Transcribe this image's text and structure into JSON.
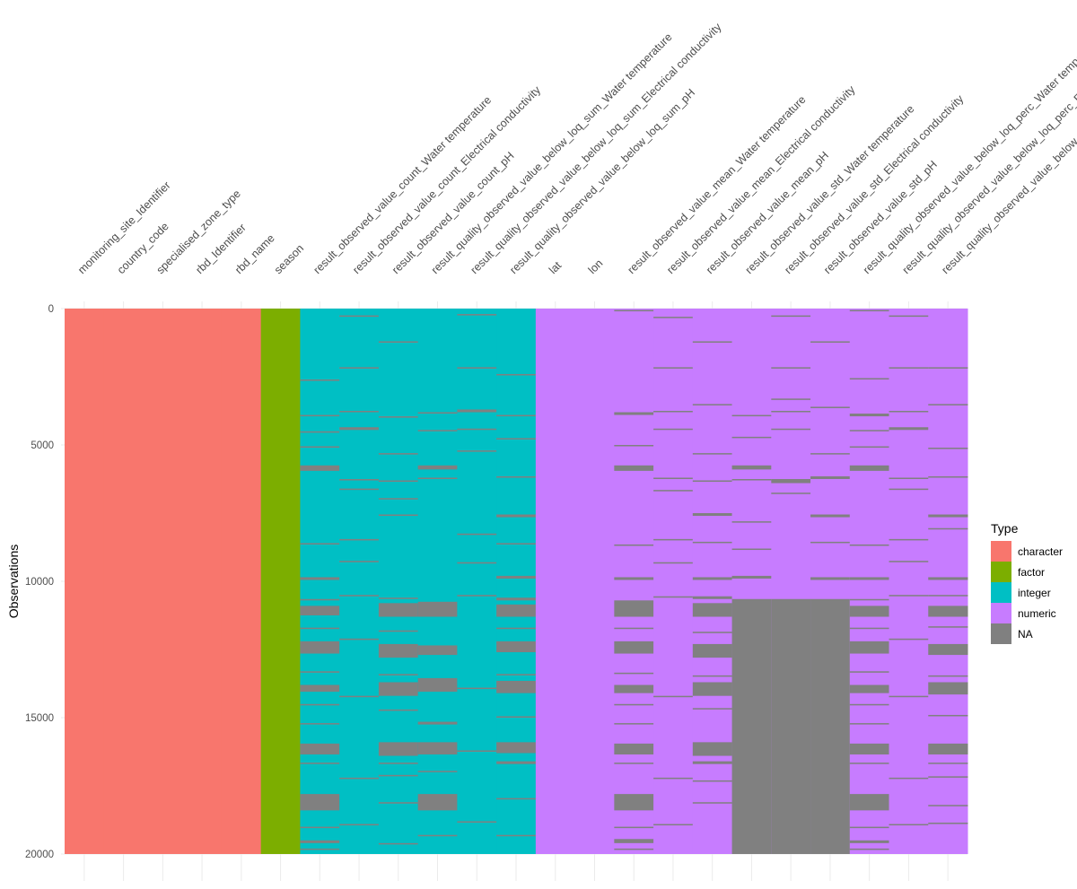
{
  "chart_data": {
    "type": "heatmap",
    "ylabel": "Observations",
    "ylim": [
      0,
      20000
    ],
    "y_reversed": true,
    "y_ticks": [
      0,
      5000,
      10000,
      15000,
      20000
    ],
    "grid": true,
    "legend_placement": "right",
    "legend": {
      "title": "Type",
      "entries": [
        {
          "label": "character",
          "color": "#F8766D"
        },
        {
          "label": "factor",
          "color": "#7CAE00"
        },
        {
          "label": "integer",
          "color": "#00BFC4"
        },
        {
          "label": "numeric",
          "color": "#C77CFF"
        },
        {
          "label": "NA",
          "color": "#808080"
        }
      ]
    },
    "columns": [
      {
        "name": "monitoring_site_Identifier",
        "type": "character",
        "missing": []
      },
      {
        "name": "country_code",
        "type": "character",
        "missing": []
      },
      {
        "name": "specialised_zone_type",
        "type": "character",
        "missing": []
      },
      {
        "name": "rbd_Identifier",
        "type": "character",
        "missing": []
      },
      {
        "name": "rbd_name",
        "type": "character",
        "missing": []
      },
      {
        "name": "season",
        "type": "factor",
        "missing": []
      },
      {
        "name": "result_observed_value_count_Water temperature",
        "type": "integer",
        "missing": [
          [
            2600,
            2650
          ],
          [
            3900,
            3950
          ],
          [
            4500,
            4550
          ],
          [
            5050,
            5100
          ],
          [
            5750,
            5950
          ],
          [
            8600,
            8650
          ],
          [
            9850,
            9950
          ],
          [
            10650,
            10700
          ],
          [
            10900,
            11250
          ],
          [
            11700,
            11750
          ],
          [
            12200,
            12650
          ],
          [
            13300,
            13350
          ],
          [
            13800,
            14050
          ],
          [
            14500,
            14550
          ],
          [
            15200,
            15250
          ],
          [
            15950,
            16350
          ],
          [
            16650,
            16700
          ],
          [
            17800,
            18400
          ],
          [
            19000,
            19050
          ],
          [
            19500,
            19600
          ],
          [
            19800,
            19850
          ]
        ]
      },
      {
        "name": "result_observed_value_count_Electrical conductivity",
        "type": "integer",
        "missing": [
          [
            250,
            300
          ],
          [
            2150,
            2200
          ],
          [
            3750,
            3800
          ],
          [
            4350,
            4450
          ],
          [
            6250,
            6300
          ],
          [
            6600,
            6650
          ],
          [
            8450,
            8500
          ],
          [
            9250,
            9300
          ],
          [
            10500,
            10550
          ],
          [
            12100,
            12150
          ],
          [
            14200,
            14250
          ],
          [
            17200,
            17250
          ],
          [
            18900,
            18950
          ]
        ]
      },
      {
        "name": "result_observed_value_count_pH",
        "type": "integer",
        "missing": [
          [
            1200,
            1250
          ],
          [
            3950,
            4000
          ],
          [
            5300,
            5350
          ],
          [
            6300,
            6350
          ],
          [
            6950,
            7000
          ],
          [
            7550,
            7600
          ],
          [
            10600,
            10650
          ],
          [
            10800,
            11300
          ],
          [
            11800,
            11850
          ],
          [
            12300,
            12800
          ],
          [
            13400,
            13450
          ],
          [
            13700,
            14200
          ],
          [
            14700,
            14750
          ],
          [
            15900,
            16400
          ],
          [
            16650,
            16700
          ],
          [
            17100,
            17150
          ],
          [
            18100,
            18150
          ],
          [
            19600,
            19650
          ]
        ]
      },
      {
        "name": "result_quality_observed_value_below_loq_sum_Water temperature",
        "type": "integer",
        "missing": [
          [
            3800,
            3850
          ],
          [
            4450,
            4500
          ],
          [
            5750,
            5900
          ],
          [
            6200,
            6250
          ],
          [
            10750,
            11300
          ],
          [
            12350,
            12700
          ],
          [
            13550,
            14050
          ],
          [
            15150,
            15250
          ],
          [
            15900,
            16350
          ],
          [
            16950,
            17000
          ],
          [
            17800,
            18400
          ],
          [
            19300,
            19350
          ]
        ]
      },
      {
        "name": "result_quality_observed_value_below_loq_sum_Electrical conductivity",
        "type": "integer",
        "missing": [
          [
            200,
            250
          ],
          [
            2150,
            2200
          ],
          [
            3700,
            3800
          ],
          [
            4400,
            4450
          ],
          [
            5200,
            5250
          ],
          [
            8250,
            8300
          ],
          [
            9300,
            9350
          ],
          [
            10500,
            10550
          ],
          [
            13900,
            13950
          ],
          [
            16200,
            16250
          ],
          [
            18800,
            18850
          ]
        ]
      },
      {
        "name": "result_quality_observed_value_below_loq_sum_pH",
        "type": "integer",
        "missing": [
          [
            2400,
            2450
          ],
          [
            3900,
            3950
          ],
          [
            4750,
            4800
          ],
          [
            6150,
            6200
          ],
          [
            7550,
            7650
          ],
          [
            8600,
            8650
          ],
          [
            9800,
            9900
          ],
          [
            10600,
            10700
          ],
          [
            10850,
            11300
          ],
          [
            11700,
            11750
          ],
          [
            12200,
            12600
          ],
          [
            13400,
            13450
          ],
          [
            13650,
            14100
          ],
          [
            14950,
            15000
          ],
          [
            15900,
            16300
          ],
          [
            16600,
            16700
          ],
          [
            17950,
            18000
          ],
          [
            19300,
            19350
          ]
        ]
      },
      {
        "name": "lat",
        "type": "numeric",
        "missing": []
      },
      {
        "name": "lon",
        "type": "numeric",
        "missing": []
      },
      {
        "name": "result_observed_value_mean_Water temperature",
        "type": "numeric",
        "missing": [
          [
            50,
            100
          ],
          [
            3800,
            3900
          ],
          [
            5000,
            5050
          ],
          [
            5750,
            5950
          ],
          [
            8650,
            8700
          ],
          [
            9850,
            9950
          ],
          [
            10700,
            11300
          ],
          [
            11700,
            11750
          ],
          [
            12200,
            12650
          ],
          [
            13350,
            13400
          ],
          [
            13800,
            14100
          ],
          [
            14500,
            14550
          ],
          [
            15200,
            15250
          ],
          [
            15950,
            16350
          ],
          [
            16650,
            16700
          ],
          [
            17800,
            18400
          ],
          [
            19000,
            19050
          ],
          [
            19450,
            19600
          ],
          [
            19800,
            19850
          ]
        ]
      },
      {
        "name": "result_observed_value_mean_Electrical conductivity",
        "type": "numeric",
        "missing": [
          [
            300,
            350
          ],
          [
            2150,
            2200
          ],
          [
            3750,
            3800
          ],
          [
            4400,
            4450
          ],
          [
            6200,
            6250
          ],
          [
            6650,
            6700
          ],
          [
            8450,
            8500
          ],
          [
            9300,
            9350
          ],
          [
            10550,
            10600
          ],
          [
            14200,
            14250
          ],
          [
            17200,
            17250
          ],
          [
            18900,
            18950
          ]
        ]
      },
      {
        "name": "result_observed_value_mean_pH",
        "type": "numeric",
        "missing": [
          [
            1200,
            1250
          ],
          [
            3500,
            3550
          ],
          [
            5300,
            5350
          ],
          [
            6300,
            6350
          ],
          [
            7500,
            7600
          ],
          [
            8550,
            8600
          ],
          [
            9850,
            9950
          ],
          [
            10550,
            10650
          ],
          [
            10800,
            11300
          ],
          [
            11850,
            11900
          ],
          [
            12300,
            12800
          ],
          [
            13450,
            13500
          ],
          [
            13700,
            14200
          ],
          [
            14650,
            14700
          ],
          [
            15900,
            16400
          ],
          [
            16600,
            16700
          ],
          [
            17300,
            17350
          ],
          [
            18100,
            18150
          ]
        ]
      },
      {
        "name": "result_observed_value_std_Water temperature",
        "type": "numeric",
        "missing": [
          [
            3900,
            3950
          ],
          [
            4700,
            4750
          ],
          [
            5750,
            5900
          ],
          [
            6250,
            6300
          ],
          [
            7800,
            7850
          ],
          [
            8800,
            8850
          ],
          [
            9800,
            9900
          ],
          [
            10650,
            20000
          ]
        ]
      },
      {
        "name": "result_observed_value_std_Electrical conductivity",
        "type": "numeric",
        "missing": [
          [
            250,
            300
          ],
          [
            2150,
            2200
          ],
          [
            3300,
            3350
          ],
          [
            3750,
            3800
          ],
          [
            4400,
            4450
          ],
          [
            6250,
            6400
          ],
          [
            6750,
            6800
          ],
          [
            10650,
            20000
          ]
        ]
      },
      {
        "name": "result_observed_value_std_pH",
        "type": "numeric",
        "missing": [
          [
            1200,
            1250
          ],
          [
            3600,
            3650
          ],
          [
            5300,
            5350
          ],
          [
            6150,
            6250
          ],
          [
            7550,
            7650
          ],
          [
            8550,
            8600
          ],
          [
            9850,
            9950
          ],
          [
            10650,
            20000
          ]
        ]
      },
      {
        "name": "result_quality_observed_value_below_loq_perc_Water temperature",
        "type": "numeric",
        "missing": [
          [
            50,
            100
          ],
          [
            2550,
            2600
          ],
          [
            3850,
            3950
          ],
          [
            4450,
            4500
          ],
          [
            5050,
            5100
          ],
          [
            5750,
            5950
          ],
          [
            8650,
            8700
          ],
          [
            9850,
            9950
          ],
          [
            10650,
            10700
          ],
          [
            10900,
            11300
          ],
          [
            11700,
            11750
          ],
          [
            12200,
            12650
          ],
          [
            13300,
            13350
          ],
          [
            13800,
            14100
          ],
          [
            14500,
            14550
          ],
          [
            15200,
            15250
          ],
          [
            15950,
            16350
          ],
          [
            16650,
            16700
          ],
          [
            17800,
            18400
          ],
          [
            19000,
            19050
          ],
          [
            19500,
            19600
          ],
          [
            19800,
            19850
          ]
        ]
      },
      {
        "name": "result_quality_observed_value_below_loq_perc_Electrical conductivity",
        "type": "numeric",
        "missing": [
          [
            250,
            300
          ],
          [
            2150,
            2200
          ],
          [
            3750,
            3800
          ],
          [
            4350,
            4450
          ],
          [
            6200,
            6250
          ],
          [
            6600,
            6650
          ],
          [
            8450,
            8500
          ],
          [
            9250,
            9300
          ],
          [
            10500,
            10550
          ],
          [
            12100,
            12150
          ],
          [
            14200,
            14250
          ],
          [
            17200,
            17250
          ],
          [
            18900,
            18950
          ]
        ]
      },
      {
        "name": "result_quality_observed_value_below_loq_perc_pH",
        "type": "numeric",
        "missing": [
          [
            2150,
            2200
          ],
          [
            3500,
            3550
          ],
          [
            5100,
            5150
          ],
          [
            6150,
            6200
          ],
          [
            7550,
            7650
          ],
          [
            8050,
            8100
          ],
          [
            9850,
            9950
          ],
          [
            10500,
            10550
          ],
          [
            10900,
            11300
          ],
          [
            11650,
            11700
          ],
          [
            12300,
            12700
          ],
          [
            13450,
            13500
          ],
          [
            13700,
            14150
          ],
          [
            14900,
            14950
          ],
          [
            15950,
            16350
          ],
          [
            16650,
            16700
          ],
          [
            17150,
            17200
          ],
          [
            18200,
            18250
          ],
          [
            18850,
            18900
          ]
        ]
      }
    ]
  }
}
